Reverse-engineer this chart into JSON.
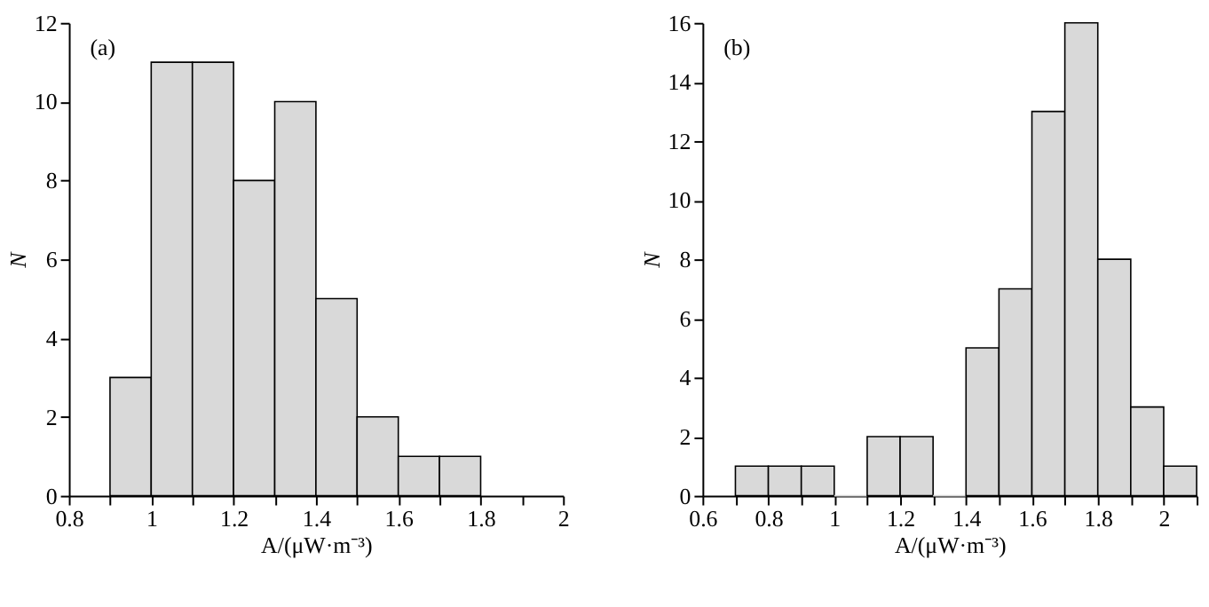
{
  "chart_data": [
    {
      "type": "histogram",
      "annotations": [
        "(a)"
      ],
      "xlabel": "A/(μW·m⁻³)",
      "ylabel": "N",
      "bins": [
        0.9,
        1.0,
        1.1,
        1.2,
        1.3,
        1.4,
        1.5,
        1.6,
        1.7,
        1.8
      ],
      "values": [
        3,
        11,
        11,
        8,
        10,
        5,
        2,
        1,
        1
      ],
      "color": "#d9d9d9",
      "xlim": [
        0.8,
        2
      ],
      "xticks": [
        0.8,
        {
          "value": 0.9,
          "label": null
        },
        1,
        {
          "value": 1.1,
          "label": null
        },
        1.2,
        {
          "value": 1.3,
          "label": null
        },
        1.4,
        {
          "value": 1.5,
          "label": null
        },
        1.6,
        {
          "value": 1.7,
          "label": null
        },
        1.8,
        {
          "value": 1.9,
          "label": null
        },
        2
      ],
      "ylim": [
        0,
        12
      ],
      "yticks": [
        0,
        2,
        4,
        6,
        8,
        10,
        12
      ],
      "grid": false
    },
    {
      "type": "histogram",
      "annotations": [
        "(b)"
      ],
      "xlabel": "A/(μW·m⁻³)",
      "ylabel": "N",
      "bins": [
        0.7,
        0.8,
        0.9,
        1.0,
        1.1,
        1.2,
        1.3,
        1.4,
        1.5,
        1.6,
        1.7,
        1.8,
        1.9,
        2.0,
        2.1
      ],
      "values": [
        1,
        1,
        1,
        0,
        2,
        2,
        0,
        5,
        7,
        13,
        16,
        8,
        3,
        1
      ],
      "color": "#d9d9d9",
      "xlim": [
        0.6,
        2.1
      ],
      "xticks": [
        0.6,
        {
          "value": 0.7,
          "label": null
        },
        0.8,
        {
          "value": 0.9,
          "label": null
        },
        1,
        {
          "value": 1.1,
          "label": null
        },
        1.2,
        {
          "value": 1.3,
          "label": null
        },
        1.4,
        {
          "value": 1.5,
          "label": null
        },
        1.6,
        {
          "value": 1.7,
          "label": null
        },
        1.8,
        {
          "value": 1.9,
          "label": null
        },
        2,
        {
          "value": 2.1,
          "label": null
        }
      ],
      "ylim": [
        0,
        16
      ],
      "yticks": [
        0,
        2,
        4,
        6,
        8,
        10,
        12,
        14,
        16
      ],
      "grid": false
    }
  ]
}
